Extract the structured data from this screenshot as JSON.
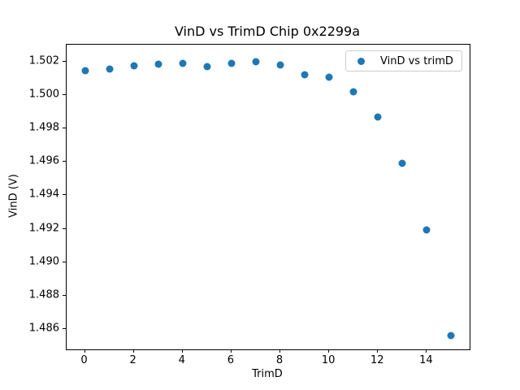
{
  "chart_data": {
    "type": "scatter",
    "title": "VinD vs TrimD Chip 0x2299a",
    "xlabel": "TrimD",
    "ylabel": "VinD (V)",
    "legend_label": "VinD vs trimD",
    "legend_position": "upper right",
    "marker_color": "#1f77b4",
    "background_color": "#ffffff",
    "grid": false,
    "x": [
      0,
      1,
      2,
      3,
      4,
      5,
      6,
      7,
      8,
      9,
      10,
      11,
      12,
      13,
      14,
      15
    ],
    "y": [
      1.50147,
      1.50155,
      1.50176,
      1.50184,
      1.50189,
      1.50167,
      1.50187,
      1.50196,
      1.50179,
      1.50122,
      1.50104,
      1.5002,
      1.49868,
      1.49591,
      1.49195,
      1.48564
    ],
    "xtick_values": [
      0,
      2,
      4,
      6,
      8,
      10,
      12,
      14
    ],
    "xtick_labels": [
      "0",
      "2",
      "4",
      "6",
      "8",
      "10",
      "12",
      "14"
    ],
    "ytick_values": [
      1.502,
      1.5,
      1.498,
      1.496,
      1.494,
      1.492,
      1.49,
      1.488,
      1.486
    ],
    "ytick_labels": [
      "1.502",
      "1.500",
      "1.498",
      "1.496",
      "1.494",
      "1.492",
      "1.490",
      "1.488",
      "1.486"
    ],
    "xlim": [
      -0.75,
      15.75
    ],
    "ylim": [
      1.4848,
      1.503
    ]
  }
}
